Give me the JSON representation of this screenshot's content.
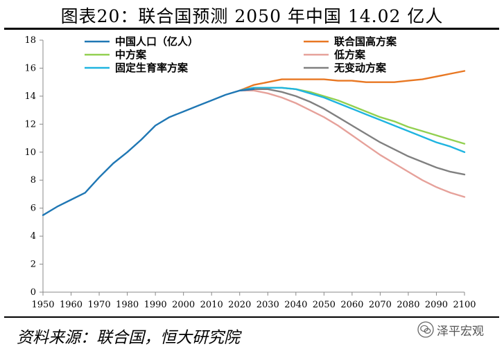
{
  "page": {
    "title": "图表20：联合国预测 2050 年中国 14.02 亿人",
    "source": "资料来源：联合国，恒大研究院",
    "watermark": "泽平宏观"
  },
  "chart_data": {
    "type": "line",
    "title": "图表20：联合国预测 2050 年中国 14.02 亿人",
    "xlabel": "",
    "ylabel": "",
    "xlim": [
      1950,
      2100
    ],
    "ylim": [
      0,
      18
    ],
    "xticks": [
      1950,
      1960,
      1970,
      1980,
      1990,
      2000,
      2010,
      2020,
      2030,
      2040,
      2050,
      2060,
      2070,
      2080,
      2090,
      2100
    ],
    "yticks": [
      0,
      2,
      4,
      6,
      8,
      10,
      12,
      14,
      16,
      18
    ],
    "grid": false,
    "legend": "top, two columns",
    "series": [
      {
        "name": "中国人口（亿人）",
        "color": "#1f77b4",
        "x": [
          1950,
          1955,
          1960,
          1965,
          1970,
          1975,
          1980,
          1985,
          1990,
          1995,
          2000,
          2005,
          2010,
          2015,
          2020,
          2025
        ],
        "y": [
          5.5,
          6.1,
          6.6,
          7.1,
          8.2,
          9.2,
          10.0,
          10.9,
          11.9,
          12.5,
          12.9,
          13.3,
          13.7,
          14.1,
          14.4,
          14.5
        ]
      },
      {
        "name": "联合国高方案",
        "color": "#e87722",
        "x": [
          2020,
          2025,
          2030,
          2035,
          2040,
          2045,
          2050,
          2055,
          2060,
          2065,
          2070,
          2075,
          2080,
          2085,
          2090,
          2095,
          2100
        ],
        "y": [
          14.4,
          14.8,
          15.0,
          15.2,
          15.2,
          15.2,
          15.2,
          15.1,
          15.1,
          15.0,
          15.0,
          15.0,
          15.1,
          15.2,
          15.4,
          15.6,
          15.8
        ]
      },
      {
        "name": "中方案",
        "color": "#92d050",
        "x": [
          2020,
          2025,
          2030,
          2035,
          2040,
          2045,
          2050,
          2055,
          2060,
          2065,
          2070,
          2075,
          2080,
          2085,
          2090,
          2095,
          2100
        ],
        "y": [
          14.4,
          14.6,
          14.6,
          14.6,
          14.5,
          14.3,
          14.0,
          13.7,
          13.3,
          12.9,
          12.5,
          12.2,
          11.8,
          11.5,
          11.2,
          10.9,
          10.6
        ]
      },
      {
        "name": "低方案",
        "color": "#e6a19a",
        "x": [
          2020,
          2025,
          2030,
          2035,
          2040,
          2045,
          2050,
          2055,
          2060,
          2065,
          2070,
          2075,
          2080,
          2085,
          2090,
          2095,
          2100
        ],
        "y": [
          14.4,
          14.4,
          14.2,
          13.9,
          13.5,
          13.0,
          12.5,
          11.9,
          11.2,
          10.5,
          9.8,
          9.2,
          8.6,
          8.0,
          7.5,
          7.1,
          6.8
        ]
      },
      {
        "name": "固定生育率方案",
        "color": "#1fb4e0",
        "x": [
          2020,
          2025,
          2030,
          2035,
          2040,
          2045,
          2050,
          2055,
          2060,
          2065,
          2070,
          2075,
          2080,
          2085,
          2090,
          2095,
          2100
        ],
        "y": [
          14.4,
          14.6,
          14.6,
          14.6,
          14.5,
          14.2,
          13.9,
          13.5,
          13.1,
          12.7,
          12.3,
          11.9,
          11.5,
          11.1,
          10.7,
          10.4,
          10.0
        ]
      },
      {
        "name": "无变动方案",
        "color": "#808080",
        "x": [
          2020,
          2025,
          2030,
          2035,
          2040,
          2045,
          2050,
          2055,
          2060,
          2065,
          2070,
          2075,
          2080,
          2085,
          2090,
          2095,
          2100
        ],
        "y": [
          14.4,
          14.5,
          14.5,
          14.3,
          14.0,
          13.6,
          13.1,
          12.5,
          11.9,
          11.3,
          10.7,
          10.2,
          9.7,
          9.3,
          8.9,
          8.6,
          8.4
        ]
      }
    ]
  }
}
